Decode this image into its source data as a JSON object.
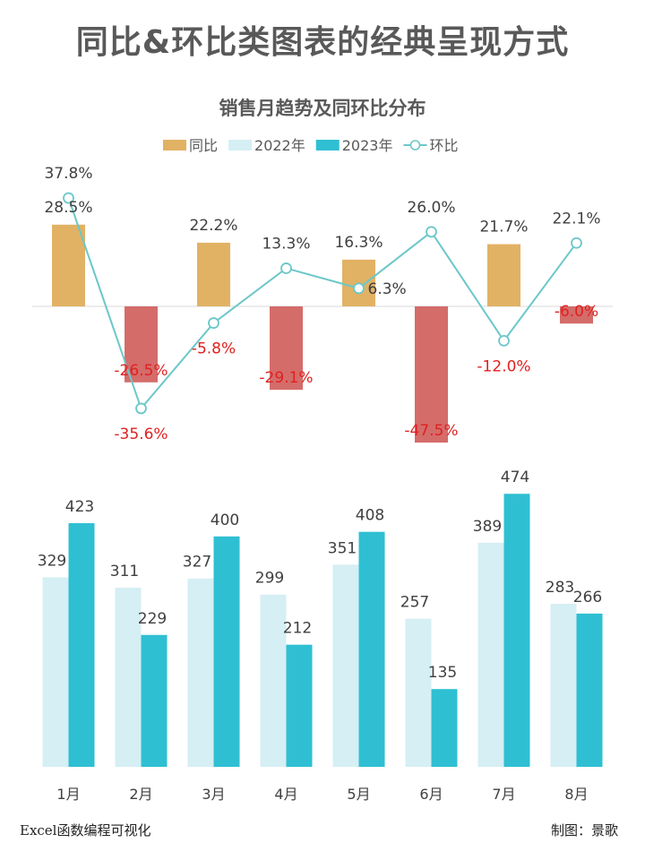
{
  "page": {
    "main_title": "同比&环比类图表的经典呈现方式",
    "footer_left": "Excel函数编程可视化",
    "footer_right": "制图：景歌"
  },
  "colors": {
    "yoy_pos": "#E1B264",
    "yoy_neg": "#D46C6A",
    "y2022": "#D5EFF4",
    "y2023": "#2FBFD3",
    "mom_line": "#6CC7C9",
    "neg_label": "#E02020",
    "label": "#404040"
  },
  "chart_data": {
    "type": "bar",
    "title": "销售月趋势及同环比分布",
    "categories": [
      "1月",
      "2月",
      "3月",
      "4月",
      "5月",
      "6月",
      "7月",
      "8月"
    ],
    "legend": [
      "同比",
      "2022年",
      "2023年",
      "环比"
    ],
    "legend_position": "top",
    "series": [
      {
        "name": "同比",
        "type": "bar",
        "values": [
          28.5,
          -26.5,
          22.2,
          -29.1,
          16.3,
          -47.5,
          21.7,
          -6.0
        ],
        "labels": [
          "28.5%",
          "-26.5%",
          "22.2%",
          "-29.1%",
          "16.3%",
          "-47.5%",
          "21.7%",
          "-6.0%"
        ]
      },
      {
        "name": "环比",
        "type": "line",
        "values": [
          37.8,
          -35.6,
          -5.8,
          13.3,
          6.3,
          26.0,
          -12.0,
          22.1
        ],
        "labels": [
          "37.8%",
          "-35.6%",
          "-5.8%",
          "13.3%",
          "6.3%",
          "26.0%",
          "-12.0%",
          "22.1%"
        ]
      },
      {
        "name": "2022年",
        "type": "bar",
        "values": [
          329,
          311,
          327,
          299,
          351,
          257,
          389,
          283
        ]
      },
      {
        "name": "2023年",
        "type": "bar",
        "values": [
          423,
          229,
          400,
          212,
          408,
          135,
          474,
          266
        ]
      }
    ],
    "ylim_pct": [
      -55,
      45
    ],
    "ylim_sales": [
      0,
      500
    ],
    "grid": false
  }
}
